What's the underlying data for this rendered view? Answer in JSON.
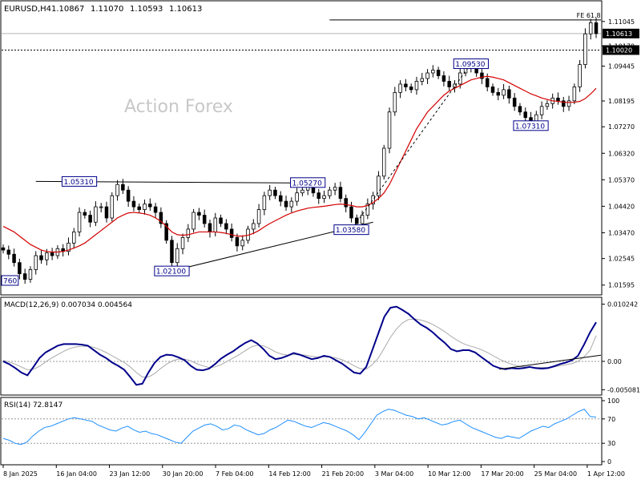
{
  "header": {
    "symbol": "EURUSD,H4",
    "ohlc": [
      "1.10867",
      "1.11070",
      "1.10593",
      "1.10613"
    ]
  },
  "watermark": "Action Forex",
  "colors": {
    "candles": "#000000",
    "ma": "#d40000",
    "macd_line": "#00008b",
    "macd_signal": "#a9a9a9",
    "rsi": "#1e8fff",
    "grid": "#e6e6e6",
    "label_box": "#00008b"
  },
  "chart_data": [
    {
      "type": "candlestick",
      "pane": "price",
      "y_range": [
        1.013,
        1.117
      ],
      "y_ticks": [
        "1.11045",
        "1.10170",
        "1.09445",
        "1.08195",
        "1.07270",
        "1.06320",
        "1.05370",
        "1.04420",
        "1.03470",
        "1.02545",
        "1.01595"
      ],
      "current_price": "1.10613",
      "reference_price": "1.10020",
      "close_series": [
        1.0285,
        1.027,
        1.024,
        1.02,
        1.018,
        1.0215,
        1.0265,
        1.025,
        1.0275,
        1.0265,
        1.029,
        1.028,
        1.031,
        1.035,
        1.042,
        1.041,
        1.0385,
        1.044,
        1.044,
        1.04,
        1.048,
        1.052,
        1.05,
        1.046,
        1.044,
        1.043,
        1.045,
        1.044,
        1.042,
        1.038,
        1.032,
        1.024,
        1.029,
        1.033,
        1.036,
        1.042,
        1.041,
        1.038,
        1.035,
        1.04,
        1.038,
        1.036,
        1.033,
        1.03,
        1.032,
        1.036,
        1.038,
        1.043,
        1.048,
        1.05,
        1.048,
        1.046,
        1.044,
        1.046,
        1.049,
        1.05,
        1.052,
        1.049,
        1.047,
        1.048,
        1.05,
        1.051,
        1.047,
        1.044,
        1.04,
        1.038,
        1.041,
        1.045,
        1.048,
        1.055,
        1.065,
        1.078,
        1.085,
        1.088,
        1.087,
        1.086,
        1.089,
        1.09,
        1.092,
        1.093,
        1.091,
        1.089,
        1.087,
        1.088,
        1.092,
        1.094,
        1.095,
        1.092,
        1.09,
        1.087,
        1.085,
        1.084,
        1.086,
        1.083,
        1.08,
        1.078,
        1.076,
        1.074,
        1.077,
        1.08,
        1.081,
        1.083,
        1.082,
        1.08,
        1.082,
        1.087,
        1.095,
        1.106,
        1.11,
        1.1061
      ],
      "moving_average": [
        1.037,
        1.036,
        1.035,
        1.0335,
        1.032,
        1.0305,
        1.0295,
        1.0285,
        1.028,
        1.0278,
        1.0278,
        1.028,
        1.0285,
        1.0292,
        1.03,
        1.031,
        1.0325,
        1.034,
        1.0355,
        1.037,
        1.0385,
        1.04,
        1.041,
        1.0418,
        1.042,
        1.0418,
        1.0415,
        1.041,
        1.04,
        1.0388,
        1.037,
        1.035,
        1.034,
        1.0338,
        1.034,
        1.0345,
        1.035,
        1.035,
        1.035,
        1.035,
        1.0348,
        1.0345,
        1.034,
        1.0335,
        1.0335,
        1.0338,
        1.0345,
        1.0355,
        1.0368,
        1.038,
        1.039,
        1.04,
        1.041,
        1.0418,
        1.0425,
        1.043,
        1.0435,
        1.0438,
        1.044,
        1.0442,
        1.0445,
        1.0448,
        1.045,
        1.0448,
        1.0445,
        1.044,
        1.044,
        1.0445,
        1.0455,
        1.047,
        1.049,
        1.052,
        1.056,
        1.06,
        1.064,
        1.068,
        1.072,
        1.075,
        1.078,
        1.08,
        1.082,
        1.084,
        1.0855,
        1.0865,
        1.0875,
        1.0885,
        1.0895,
        1.09,
        1.0905,
        1.0908,
        1.0905,
        1.09,
        1.0895,
        1.0885,
        1.0875,
        1.0865,
        1.0855,
        1.0845,
        1.0838,
        1.083,
        1.0825,
        1.082,
        1.0818,
        1.0815,
        1.0814,
        1.0815,
        1.0818,
        1.0828,
        1.0845,
        1.0865
      ],
      "annotations": [
        {
          "text": "1.05310",
          "price": 1.0531,
          "index": 14
        },
        {
          "text": "1.05270",
          "price": 1.0527,
          "index": 56
        },
        {
          "text": "1.03580",
          "price": 1.0358,
          "index": 64
        },
        {
          "text": "1.02100",
          "price": 1.021,
          "index": 31
        },
        {
          "text": "1.09530",
          "price": 1.0953,
          "index": 86
        },
        {
          "text": "1.07310",
          "price": 1.0731,
          "index": 97
        },
        {
          "text": "760",
          "price": 1.0176,
          "index": 0
        },
        {
          "text": "FE 61.8",
          "price": 1.111,
          "index": 106
        }
      ]
    },
    {
      "type": "line",
      "pane": "macd",
      "title": "MACD(12,26,9) 0.007034 0.004564",
      "y_range": [
        -0.0056,
        0.0109
      ],
      "y_ticks": [
        "0.010242",
        "0.00",
        "-0.005081"
      ],
      "macd": [
        0.0,
        -0.0005,
        -0.0012,
        -0.002,
        -0.0025,
        -0.001,
        0.0006,
        0.0016,
        0.0022,
        0.0028,
        0.0031,
        0.0031,
        0.0031,
        0.003,
        0.0028,
        0.002,
        0.0012,
        0.0006,
        -0.0002,
        -0.0008,
        -0.0015,
        -0.0028,
        -0.0042,
        -0.004,
        -0.002,
        -0.0003,
        0.0008,
        0.0012,
        0.0011,
        0.0007,
        0.0002,
        -0.0008,
        -0.0015,
        -0.0016,
        -0.0013,
        -0.0005,
        0.0005,
        0.0012,
        0.0018,
        0.0026,
        0.0033,
        0.0038,
        0.0032,
        0.0022,
        0.001,
        0.0004,
        0.0006,
        0.001,
        0.0015,
        0.0012,
        0.0008,
        0.0004,
        0.0006,
        0.001,
        0.0008,
        0.0002,
        -0.0004,
        -0.0012,
        -0.002,
        -0.0022,
        -0.001,
        0.002,
        0.005,
        0.008,
        0.0096,
        0.0098,
        0.0092,
        0.0085,
        0.0075,
        0.0066,
        0.006,
        0.0052,
        0.0042,
        0.0033,
        0.0022,
        0.0018,
        0.002,
        0.002,
        0.0016,
        0.0008,
        0.0,
        -0.0008,
        -0.0012,
        -0.0014,
        -0.0012,
        -0.0013,
        -0.0012,
        -0.001,
        -0.0012,
        -0.0013,
        -0.0012,
        -0.0009,
        -0.0005,
        -0.0002,
        0.0002,
        0.001,
        0.003,
        0.0052,
        0.007
      ],
      "signal": [
        0.0002,
        -0.0001,
        -0.0005,
        -0.001,
        -0.0015,
        -0.0014,
        -0.0009,
        -0.0001,
        0.0006,
        0.0012,
        0.0018,
        0.0023,
        0.0026,
        0.0027,
        0.0027,
        0.0025,
        0.0021,
        0.0016,
        0.001,
        0.0004,
        -0.0002,
        -0.001,
        -0.002,
        -0.0028,
        -0.0028,
        -0.0022,
        -0.0013,
        -0.0005,
        0.0001,
        0.0004,
        0.0004,
        0.0001,
        -0.0004,
        -0.0008,
        -0.0011,
        -0.001,
        -0.0006,
        0.0,
        0.0006,
        0.0012,
        0.0019,
        0.0026,
        0.0029,
        0.0028,
        0.0023,
        0.0017,
        0.0013,
        0.0011,
        0.0012,
        0.0012,
        0.0011,
        0.0009,
        0.0008,
        0.0008,
        0.0008,
        0.0006,
        0.0003,
        -0.0002,
        -0.0008,
        -0.0013,
        -0.0014,
        -0.0006,
        0.0006,
        0.0024,
        0.0043,
        0.0058,
        0.0069,
        0.0075,
        0.0076,
        0.0074,
        0.0071,
        0.0066,
        0.006,
        0.0053,
        0.0045,
        0.0038,
        0.0032,
        0.0028,
        0.0025,
        0.0021,
        0.0016,
        0.001,
        0.0004,
        -0.0001,
        -0.0005,
        -0.0008,
        -0.001,
        -0.001,
        -0.0011,
        -0.0011,
        -0.0011,
        -0.001,
        -0.0008,
        -0.0006,
        -0.0004,
        0.0,
        0.0008,
        0.002,
        0.0046
      ]
    },
    {
      "type": "line",
      "pane": "rsi",
      "title": "RSI(14) 72.8147",
      "y_range": [
        0,
        100
      ],
      "y_ticks": [
        "100",
        "70",
        "30",
        "0"
      ],
      "levels": [
        70,
        30
      ],
      "values": [
        38,
        35,
        30,
        28,
        32,
        42,
        50,
        56,
        58,
        62,
        66,
        70,
        72,
        70,
        68,
        66,
        60,
        56,
        52,
        50,
        55,
        58,
        52,
        48,
        50,
        46,
        44,
        40,
        36,
        32,
        30,
        40,
        50,
        55,
        60,
        62,
        58,
        52,
        54,
        60,
        58,
        52,
        48,
        44,
        46,
        52,
        56,
        62,
        68,
        66,
        62,
        58,
        56,
        60,
        64,
        62,
        58,
        54,
        50,
        44,
        36,
        48,
        62,
        76,
        82,
        86,
        84,
        80,
        76,
        74,
        70,
        72,
        68,
        64,
        60,
        62,
        66,
        68,
        62,
        56,
        52,
        48,
        44,
        40,
        38,
        42,
        40,
        38,
        44,
        50,
        54,
        58,
        56,
        62,
        66,
        70,
        76,
        82,
        86,
        74,
        73
      ]
    }
  ],
  "x_axis": {
    "ticks": [
      "8 Jan 2025",
      "16 Jan 04:00",
      "23 Jan 12:00",
      "30 Jan 20:00",
      "7 Feb 04:00",
      "14 Feb 12:00",
      "21 Feb 20:00",
      "3 Mar 04:00",
      "10 Mar 12:00",
      "17 Mar 20:00",
      "25 Mar 04:00",
      "1 Apr 12:00"
    ]
  }
}
